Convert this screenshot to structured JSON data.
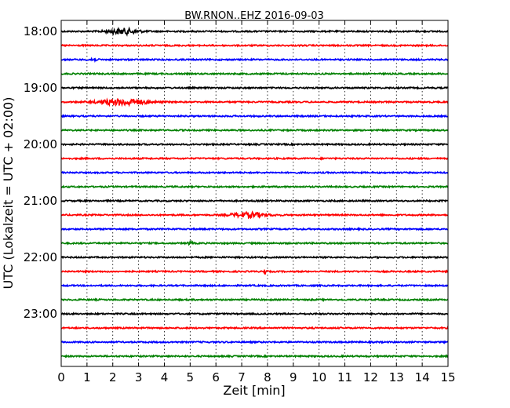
{
  "chart_data": {
    "type": "line",
    "title": "BW.RNON..EHZ 2016-09-03",
    "xlabel": "Zeit  [min]",
    "ylabel": "UTC (Lokalzeit = UTC + 02:00)",
    "xlim": [
      0,
      15
    ],
    "x_ticks": [
      "0",
      "1",
      "2",
      "3",
      "4",
      "5",
      "6",
      "7",
      "8",
      "9",
      "10",
      "11",
      "12",
      "13",
      "14",
      "15"
    ],
    "y_tick_labels": [
      "18:00",
      "19:00",
      "20:00",
      "21:00",
      "22:00",
      "23:00"
    ],
    "grid": "vertical dotted",
    "colors": [
      "#000000",
      "#ff0000",
      "#0000ff",
      "#008000"
    ],
    "trace_interval_min": 15,
    "trace_count": 24,
    "traces": [
      {
        "start": "18:00",
        "color": "#000000",
        "events": [
          {
            "t": 2.4,
            "amp": 3.5,
            "width": 0.6
          }
        ]
      },
      {
        "start": "18:15",
        "color": "#ff0000",
        "events": []
      },
      {
        "start": "18:30",
        "color": "#0000ff",
        "events": [
          {
            "t": 1.2,
            "amp": 2.0,
            "width": 0.15
          }
        ]
      },
      {
        "start": "18:45",
        "color": "#008000",
        "events": []
      },
      {
        "start": "19:00",
        "color": "#000000",
        "events": []
      },
      {
        "start": "19:15",
        "color": "#ff0000",
        "events": [
          {
            "t": 2.4,
            "amp": 4.0,
            "width": 0.9
          }
        ]
      },
      {
        "start": "19:30",
        "color": "#0000ff",
        "events": []
      },
      {
        "start": "19:45",
        "color": "#008000",
        "events": []
      },
      {
        "start": "20:00",
        "color": "#000000",
        "events": []
      },
      {
        "start": "20:15",
        "color": "#ff0000",
        "events": []
      },
      {
        "start": "20:30",
        "color": "#0000ff",
        "events": []
      },
      {
        "start": "20:45",
        "color": "#008000",
        "events": []
      },
      {
        "start": "21:00",
        "color": "#000000",
        "events": []
      },
      {
        "start": "21:15",
        "color": "#ff0000",
        "events": [
          {
            "t": 7.3,
            "amp": 3.0,
            "width": 0.7
          }
        ]
      },
      {
        "start": "21:30",
        "color": "#0000ff",
        "events": []
      },
      {
        "start": "21:45",
        "color": "#008000",
        "events": [
          {
            "t": 5.0,
            "amp": 1.8,
            "width": 0.1
          }
        ]
      },
      {
        "start": "22:00",
        "color": "#000000",
        "events": []
      },
      {
        "start": "22:15",
        "color": "#ff0000",
        "events": [
          {
            "t": 7.9,
            "amp": 4.5,
            "width": 0.05
          }
        ]
      },
      {
        "start": "22:30",
        "color": "#0000ff",
        "events": []
      },
      {
        "start": "22:45",
        "color": "#008000",
        "events": []
      },
      {
        "start": "23:00",
        "color": "#000000",
        "events": []
      },
      {
        "start": "23:15",
        "color": "#ff0000",
        "events": []
      },
      {
        "start": "23:30",
        "color": "#0000ff",
        "events": []
      },
      {
        "start": "23:45",
        "color": "#008000",
        "events": []
      }
    ]
  }
}
